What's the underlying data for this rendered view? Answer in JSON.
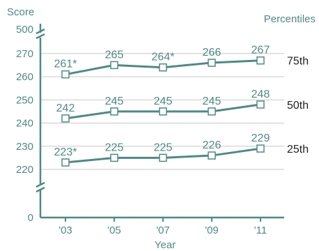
{
  "colors": {
    "line": "#4f8a84",
    "grid": "#c8c8c8",
    "label_dark": "#222222",
    "background": "#ffffff"
  },
  "chart_data": {
    "type": "line",
    "ylabel": "Score",
    "xlabel": "Year",
    "legend_title": "Percentiles",
    "categories": [
      "'03",
      "'05",
      "'07",
      "'09",
      "'11"
    ],
    "y_ticks": [
      0,
      220,
      230,
      240,
      250,
      260,
      270,
      500
    ],
    "y_axis_breaks": [
      "between 0 and 220",
      "between 270 and 500"
    ],
    "ylim_main": [
      215,
      272
    ],
    "grid": true,
    "series": [
      {
        "name": "75th",
        "values": [
          261,
          265,
          264,
          266,
          267
        ],
        "labels": [
          "261*",
          "265",
          "264*",
          "266",
          "267"
        ]
      },
      {
        "name": "50th",
        "values": [
          242,
          245,
          245,
          245,
          248
        ],
        "labels": [
          "242",
          "245",
          "245",
          "245",
          "248"
        ]
      },
      {
        "name": "25th",
        "values": [
          223,
          225,
          225,
          226,
          229
        ],
        "labels": [
          "223*",
          "225",
          "225",
          "226",
          "229"
        ]
      }
    ]
  }
}
